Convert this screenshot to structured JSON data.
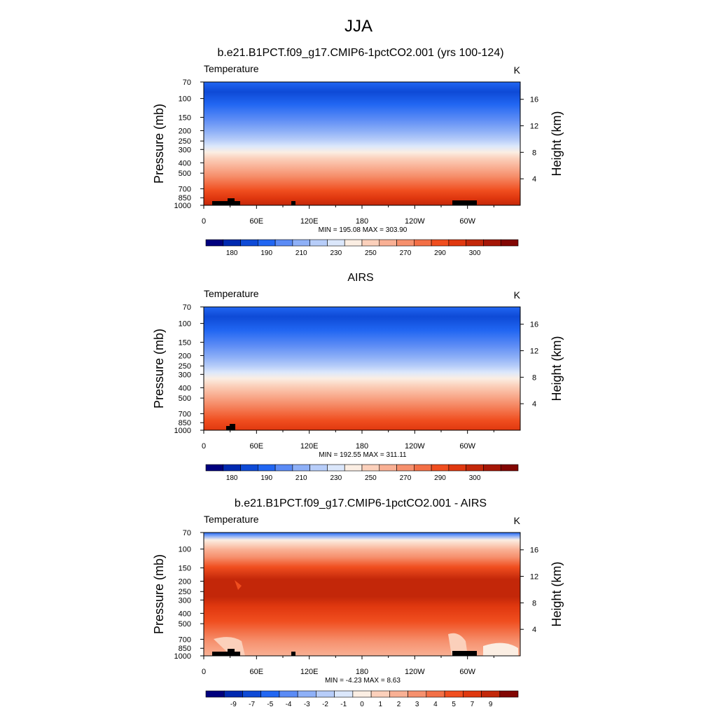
{
  "figure": {
    "title": "JJA"
  },
  "chart_data": [
    {
      "type": "heatmap",
      "title": "b.e21.B1PCT.f09_g17.CMIP6-1pctCO2.001 (yrs 100-124)",
      "field_label": "Temperature",
      "units": "K",
      "ylabel": "Pressure (mb)",
      "ylabel_right": "Height (km)",
      "xlabel": "",
      "x_ticks": [
        "0",
        "60E",
        "120E",
        "180",
        "120W",
        "60W"
      ],
      "y_ticks": [
        "70",
        "100",
        "150",
        "200",
        "250",
        "300",
        "400",
        "500",
        "700",
        "850",
        "1000"
      ],
      "y_ticks_right": [
        "4",
        "8",
        "12",
        "16"
      ],
      "xlim": [
        0,
        360
      ],
      "ylim": [
        1000,
        70
      ],
      "y_scale": "log",
      "stats": "MIN = 195.08  MAX = 303.90",
      "colorbar_labels": [
        "180",
        "190",
        "210",
        "230",
        "250",
        "270",
        "290",
        "300"
      ],
      "colorbar_colors": [
        "#00007e",
        "#0029b0",
        "#0e4ad6",
        "#2166f2",
        "#5b8bf5",
        "#8eb0f7",
        "#b7cdf9",
        "#dbe7fb",
        "#fbeee3",
        "#fbd0bb",
        "#f9b094",
        "#f6906d",
        "#f36f46",
        "#f04e1f",
        "#e0380f",
        "#c32709",
        "#a51606",
        "#820603"
      ]
    },
    {
      "type": "heatmap",
      "title": "AIRS",
      "field_label": "Temperature",
      "units": "K",
      "ylabel": "Pressure (mb)",
      "ylabel_right": "Height (km)",
      "xlabel": "",
      "x_ticks": [
        "0",
        "60E",
        "120E",
        "180",
        "120W",
        "60W"
      ],
      "y_ticks": [
        "70",
        "100",
        "150",
        "200",
        "250",
        "300",
        "400",
        "500",
        "700",
        "850",
        "1000"
      ],
      "y_ticks_right": [
        "4",
        "8",
        "12",
        "16"
      ],
      "xlim": [
        0,
        360
      ],
      "ylim": [
        1000,
        70
      ],
      "y_scale": "log",
      "stats": "MIN = 192.55  MAX = 311.11",
      "colorbar_labels": [
        "180",
        "190",
        "210",
        "230",
        "250",
        "270",
        "290",
        "300"
      ],
      "colorbar_colors": [
        "#00007e",
        "#0029b0",
        "#0e4ad6",
        "#2166f2",
        "#5b8bf5",
        "#8eb0f7",
        "#b7cdf9",
        "#dbe7fb",
        "#fbeee3",
        "#fbd0bb",
        "#f9b094",
        "#f6906d",
        "#f36f46",
        "#f04e1f",
        "#e0380f",
        "#c32709",
        "#a51606",
        "#820603"
      ]
    },
    {
      "type": "heatmap",
      "title": "b.e21.B1PCT.f09_g17.CMIP6-1pctCO2.001 - AIRS",
      "field_label": "Temperature",
      "units": "K",
      "ylabel": "Pressure (mb)",
      "ylabel_right": "Height (km)",
      "xlabel": "",
      "x_ticks": [
        "0",
        "60E",
        "120E",
        "180",
        "120W",
        "60W"
      ],
      "y_ticks": [
        "70",
        "100",
        "150",
        "200",
        "250",
        "300",
        "400",
        "500",
        "700",
        "850",
        "1000"
      ],
      "y_ticks_right": [
        "4",
        "8",
        "12",
        "16"
      ],
      "xlim": [
        0,
        360
      ],
      "ylim": [
        1000,
        70
      ],
      "y_scale": "log",
      "stats": "MIN = -4.23  MAX =   8.63",
      "colorbar_labels": [
        "-9",
        "-7",
        "-5",
        "-4",
        "-3",
        "-2",
        "-1",
        "0",
        "1",
        "2",
        "3",
        "4",
        "5",
        "7",
        "9"
      ],
      "colorbar_colors": [
        "#00007e",
        "#0029b0",
        "#0e4ad6",
        "#2166f2",
        "#5b8bf5",
        "#8eb0f7",
        "#b7cdf9",
        "#dbe7fb",
        "#fbeee3",
        "#fbd0bb",
        "#f9b094",
        "#f6906d",
        "#f36f46",
        "#f04e1f",
        "#e0380f",
        "#c32709",
        "#820603"
      ]
    }
  ]
}
